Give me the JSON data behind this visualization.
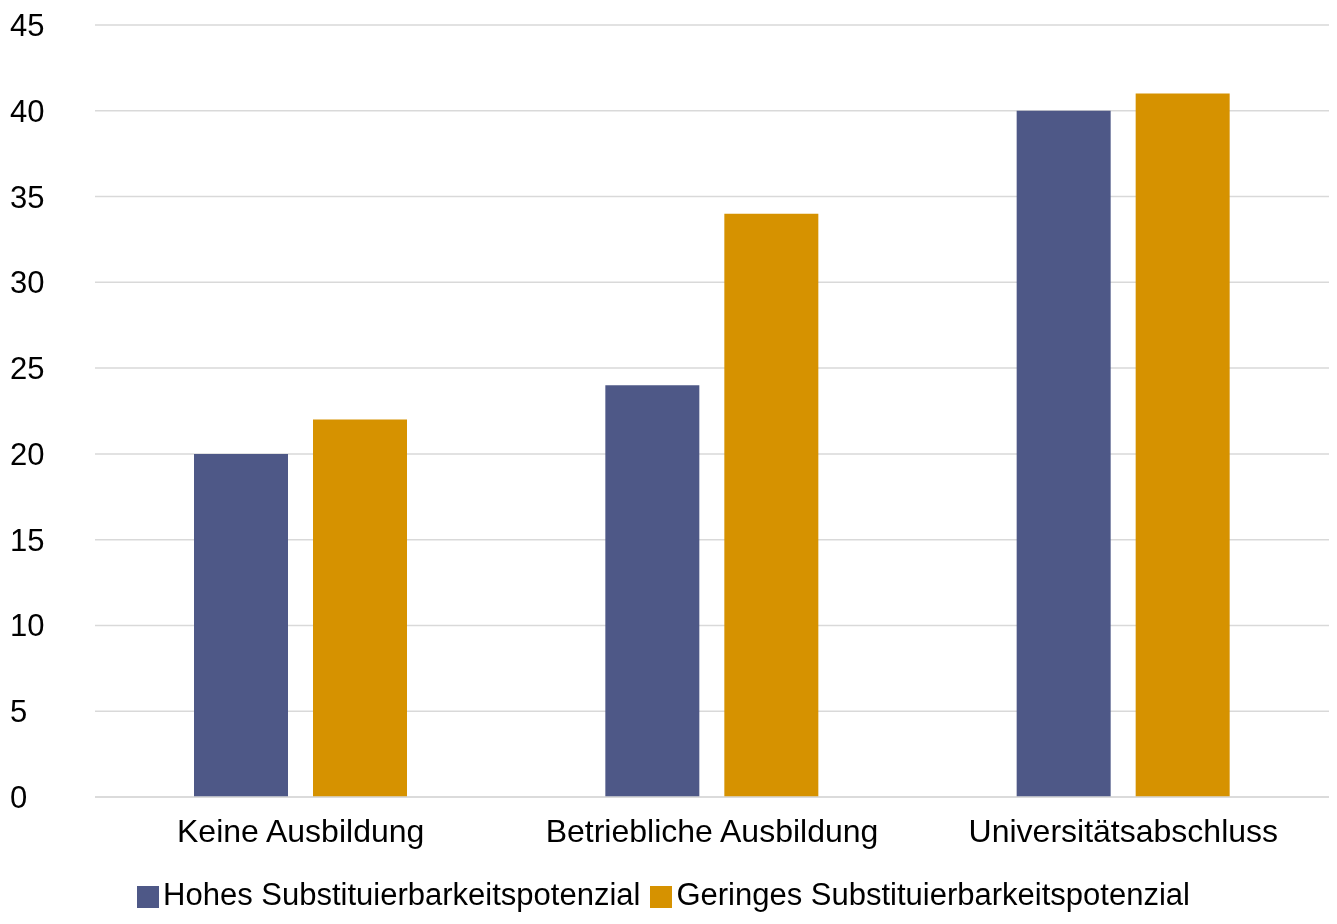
{
  "chart_data": {
    "type": "bar",
    "categories": [
      "Keine Ausbildung",
      "Betriebliche Ausbildung",
      "Universitätsabschluss"
    ],
    "series": [
      {
        "name": "Hohes Substituierbarkeitspotenzial",
        "color": "#4e5887",
        "values": [
          20,
          24,
          40
        ]
      },
      {
        "name": "Geringes  Substituierbarkeitspotenzial",
        "color": "#d69200",
        "values": [
          22,
          34,
          41
        ]
      }
    ],
    "ylim": [
      0,
      45
    ],
    "yticks": [
      0,
      5,
      10,
      15,
      20,
      25,
      30,
      35,
      40,
      45
    ],
    "grid": "y",
    "legend": "bottom"
  }
}
